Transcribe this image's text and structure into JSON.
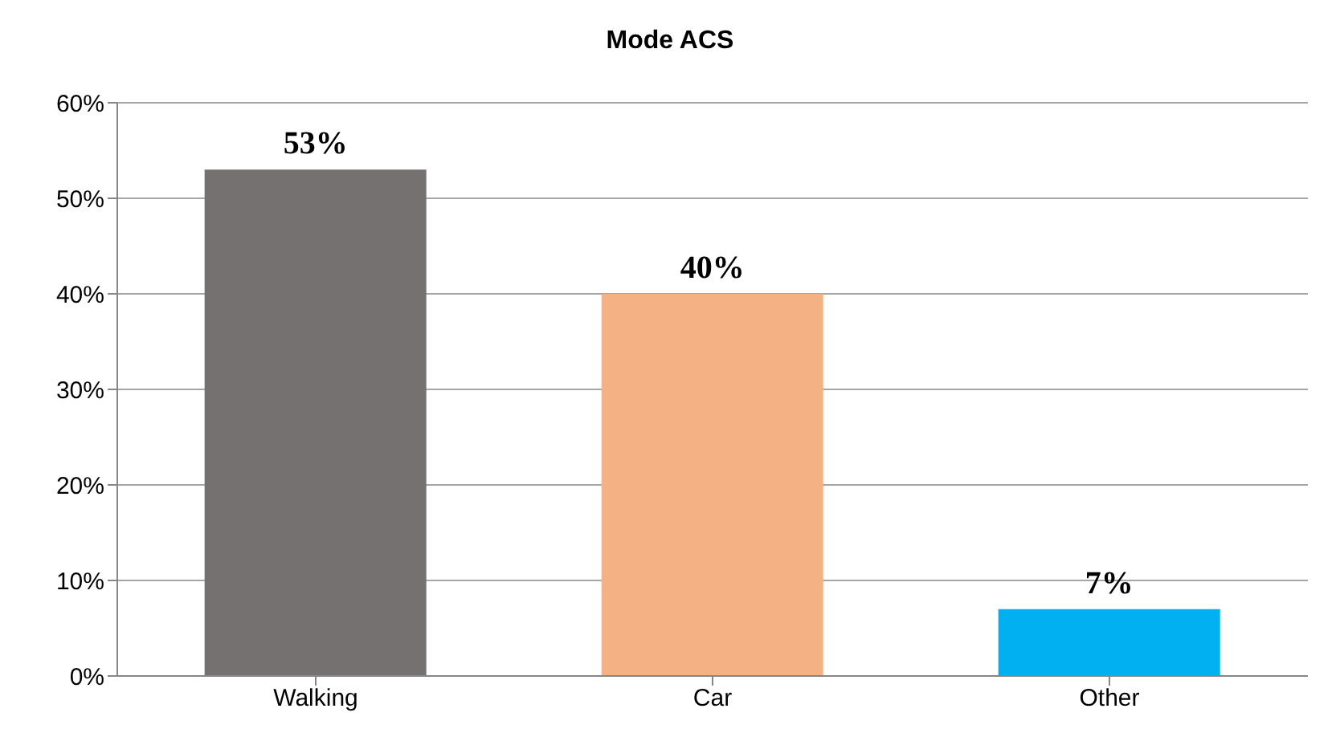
{
  "chart_data": {
    "type": "bar",
    "title": "Mode ACS",
    "categories": [
      "Walking",
      "Car",
      "Other"
    ],
    "values": [
      53,
      40,
      7
    ],
    "colors": [
      "#767171",
      "#f4b183",
      "#00b0f0"
    ],
    "value_labels": [
      "53%",
      "40%",
      "7%"
    ],
    "ylim": [
      0,
      60
    ],
    "yticks": [
      {
        "value": 0,
        "label": "0%"
      },
      {
        "value": 10,
        "label": "10%"
      },
      {
        "value": 20,
        "label": "20%"
      },
      {
        "value": 30,
        "label": "30%"
      },
      {
        "value": 40,
        "label": "40%"
      },
      {
        "value": 50,
        "label": "50%"
      },
      {
        "value": 60,
        "label": "60%"
      }
    ],
    "grid": "y"
  }
}
